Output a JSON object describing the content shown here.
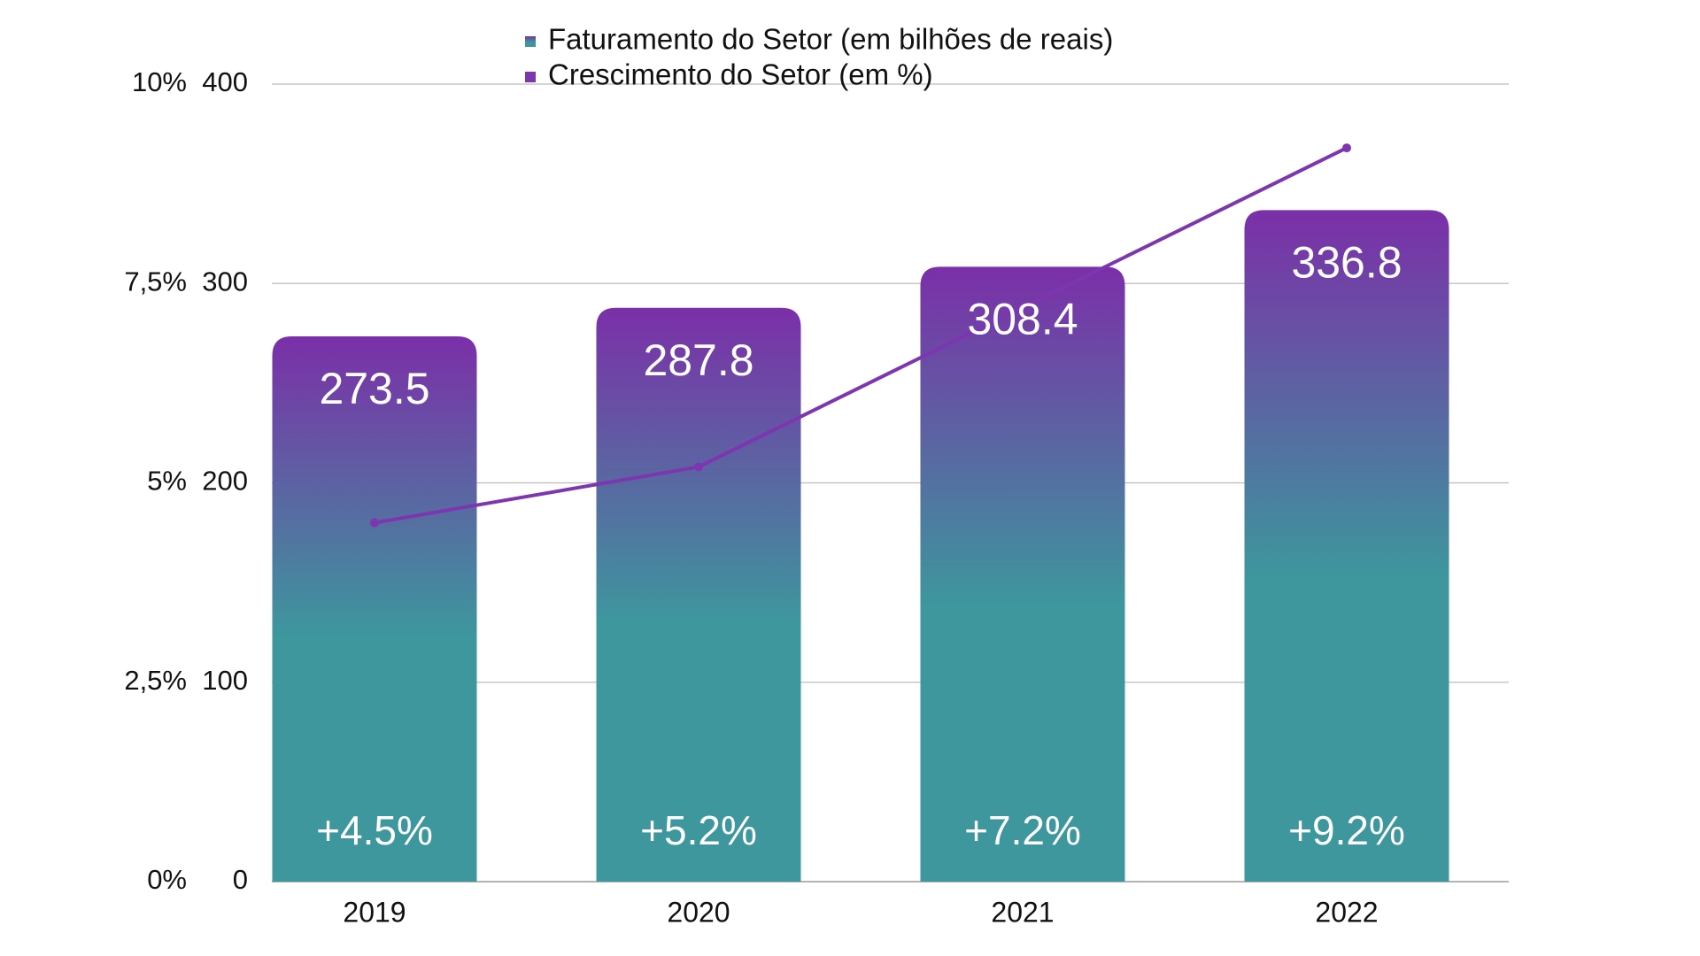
{
  "chart_data": {
    "type": "bar-line",
    "categories": [
      "2019",
      "2020",
      "2021",
      "2022"
    ],
    "series": [
      {
        "name": "Faturamento do Setor (em bilhões de reais)",
        "type": "bar",
        "gradient": [
          "#7b2fa8",
          "#3d979d"
        ],
        "values": [
          273.5,
          287.8,
          308.4,
          336.8
        ]
      },
      {
        "name": "Crescimento do Setor (em %)",
        "type": "line",
        "axis": "y2",
        "color": "#7d35b0",
        "values": [
          4.5,
          5.2,
          7.2,
          9.2
        ],
        "value_labels": [
          "+4.5%",
          "+5.2%",
          "+7.2%",
          "+9.2%"
        ]
      }
    ],
    "ylim": [
      0,
      400
    ],
    "yticks": [
      0,
      100,
      200,
      300,
      400
    ],
    "y2lim": [
      0,
      10
    ],
    "y2ticks": [
      {
        "value": 0,
        "label": "0%"
      },
      {
        "value": 2.5,
        "label": "2,5%"
      },
      {
        "value": 5,
        "label": "5%"
      },
      {
        "value": 7.5,
        "label": "7,5%"
      },
      {
        "value": 10,
        "label": "10%"
      }
    ],
    "grid": true,
    "legend": "top"
  }
}
